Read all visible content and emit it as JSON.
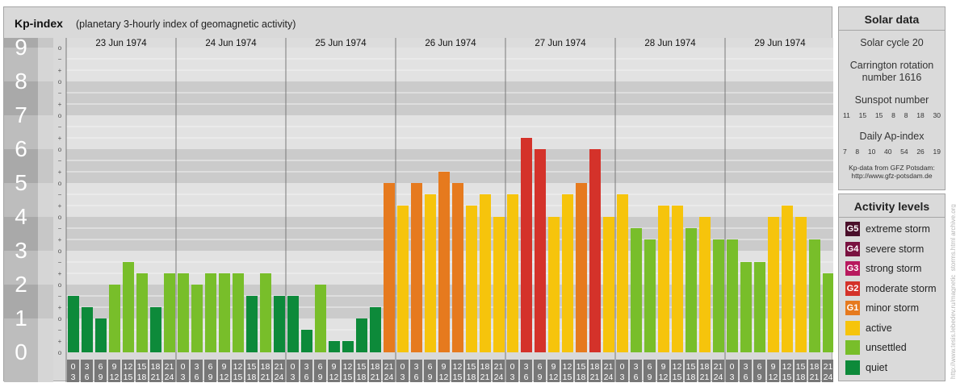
{
  "header": {
    "title": "Kp-index",
    "subtitle": "(planetary 3-hourly index of geomagnetic activity)"
  },
  "chart_data": {
    "type": "bar",
    "title": "Kp-index",
    "subtitle": "(planetary 3-hourly index of geomagnetic activity)",
    "ylim": [
      0,
      9
    ],
    "y_ticks": [
      "0",
      "1",
      "2",
      "3",
      "4",
      "5",
      "6",
      "7",
      "8",
      "9"
    ],
    "y_minor_ticks": [
      "o",
      "+",
      "−"
    ],
    "days": [
      "23 Jun 1974",
      "24 Jun 1974",
      "25 Jun 1974",
      "26 Jun 1974",
      "27 Jun 1974",
      "28 Jun 1974",
      "29 Jun 1974"
    ],
    "interval_labels": [
      [
        "0",
        "3"
      ],
      [
        "3",
        "6"
      ],
      [
        "6",
        "9"
      ],
      [
        "9",
        "12"
      ],
      [
        "12",
        "15"
      ],
      [
        "15",
        "18"
      ],
      [
        "18",
        "21"
      ],
      [
        "21",
        "24"
      ]
    ],
    "values": [
      1.667,
      1.333,
      1.0,
      2.0,
      2.667,
      2.333,
      1.333,
      2.333,
      2.333,
      2.0,
      2.333,
      2.333,
      2.333,
      1.667,
      2.333,
      1.667,
      1.667,
      0.667,
      2.0,
      0.333,
      0.333,
      1.0,
      1.333,
      5.0,
      4.333,
      5.0,
      4.667,
      5.333,
      5.0,
      4.333,
      4.667,
      4.0,
      4.667,
      6.333,
      6.0,
      4.0,
      4.667,
      5.0,
      6.0,
      4.0,
      4.667,
      3.667,
      3.333,
      4.333,
      4.333,
      3.667,
      4.0,
      3.333,
      3.333,
      2.667,
      2.667,
      4.0,
      4.333,
      4.0,
      3.333,
      2.333
    ],
    "grid": true
  },
  "solar": {
    "heading": "Solar data",
    "cycle": "Solar cycle 20",
    "carrington_line1": "Carrington rotation",
    "carrington_line2": "number 1616",
    "sunspot_label": "Sunspot number",
    "sunspot_values": [
      "11",
      "15",
      "15",
      "8",
      "8",
      "18",
      "30"
    ],
    "ap_label": "Daily Ap-index",
    "ap_values": [
      "7",
      "8",
      "10",
      "40",
      "54",
      "26",
      "19"
    ],
    "source_line1": "Kp-data from GFZ Potsdam:",
    "source_line2": "http://www.gfz-potsdam.de"
  },
  "levels": {
    "heading": "Activity levels",
    "items": [
      {
        "badge": "G5",
        "label": "extreme storm",
        "color": "#4a0f2a"
      },
      {
        "badge": "G4",
        "label": "severe storm",
        "color": "#7a1240"
      },
      {
        "badge": "G3",
        "label": "strong storm",
        "color": "#b8195e"
      },
      {
        "badge": "G2",
        "label": "moderate storm",
        "color": "#d4322a"
      },
      {
        "badge": "G1",
        "label": "minor storm",
        "color": "#e67a1e"
      },
      {
        "badge": "",
        "label": "active",
        "color": "#f6c40c"
      },
      {
        "badge": "",
        "label": "unsettled",
        "color": "#78be2a"
      },
      {
        "badge": "",
        "label": "quiet",
        "color": "#0d8a3a"
      }
    ]
  },
  "watermark": "http://www.tesis.lebedev.ru/magnetic_storms.html archive.org",
  "colors": {
    "quiet": "#0d8a3a",
    "unsettled": "#78be2a",
    "active": "#f6c40c",
    "g1": "#e67a1e",
    "g2": "#d4322a",
    "g3": "#b8195e"
  }
}
